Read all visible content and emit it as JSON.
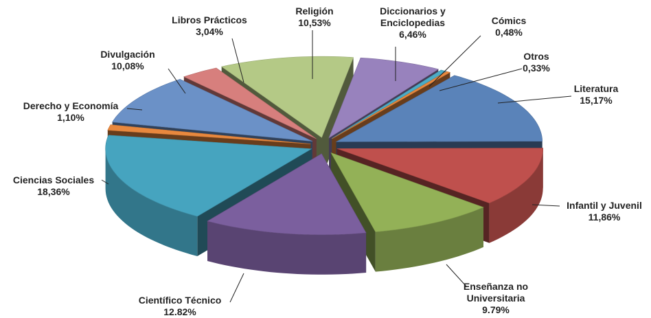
{
  "chart_data": {
    "type": "pie",
    "categories": [
      "Literatura",
      "Infantil y Juvenil",
      "Enseñanza no Universitaria",
      "Científico Técnico",
      "Ciencias Sociales",
      "Derecho y Economía",
      "Divulgación",
      "Libros Prácticos",
      "Religión",
      "Diccionarios y Enciclopedias",
      "Cómics",
      "Otros"
    ],
    "values": [
      15.17,
      11.86,
      9.79,
      12.82,
      18.36,
      1.1,
      10.08,
      3.04,
      10.53,
      6.46,
      0.48,
      0.33
    ],
    "value_labels": [
      "15,17%",
      "11,86%",
      "9.79%",
      "12.82%",
      "18,36%",
      "1,10%",
      "10,08%",
      "3,04%",
      "10,53%",
      "6,46%",
      "0,48%",
      "0,33%"
    ],
    "colors": [
      "#5a83b9",
      "#bf504d",
      "#93b157",
      "#7b5f9e",
      "#46a4bf",
      "#e8883e",
      "#6b91c7",
      "#d77f7d",
      "#b4c986",
      "#9882bd",
      "#4bacc6",
      "#e8883e"
    ]
  }
}
